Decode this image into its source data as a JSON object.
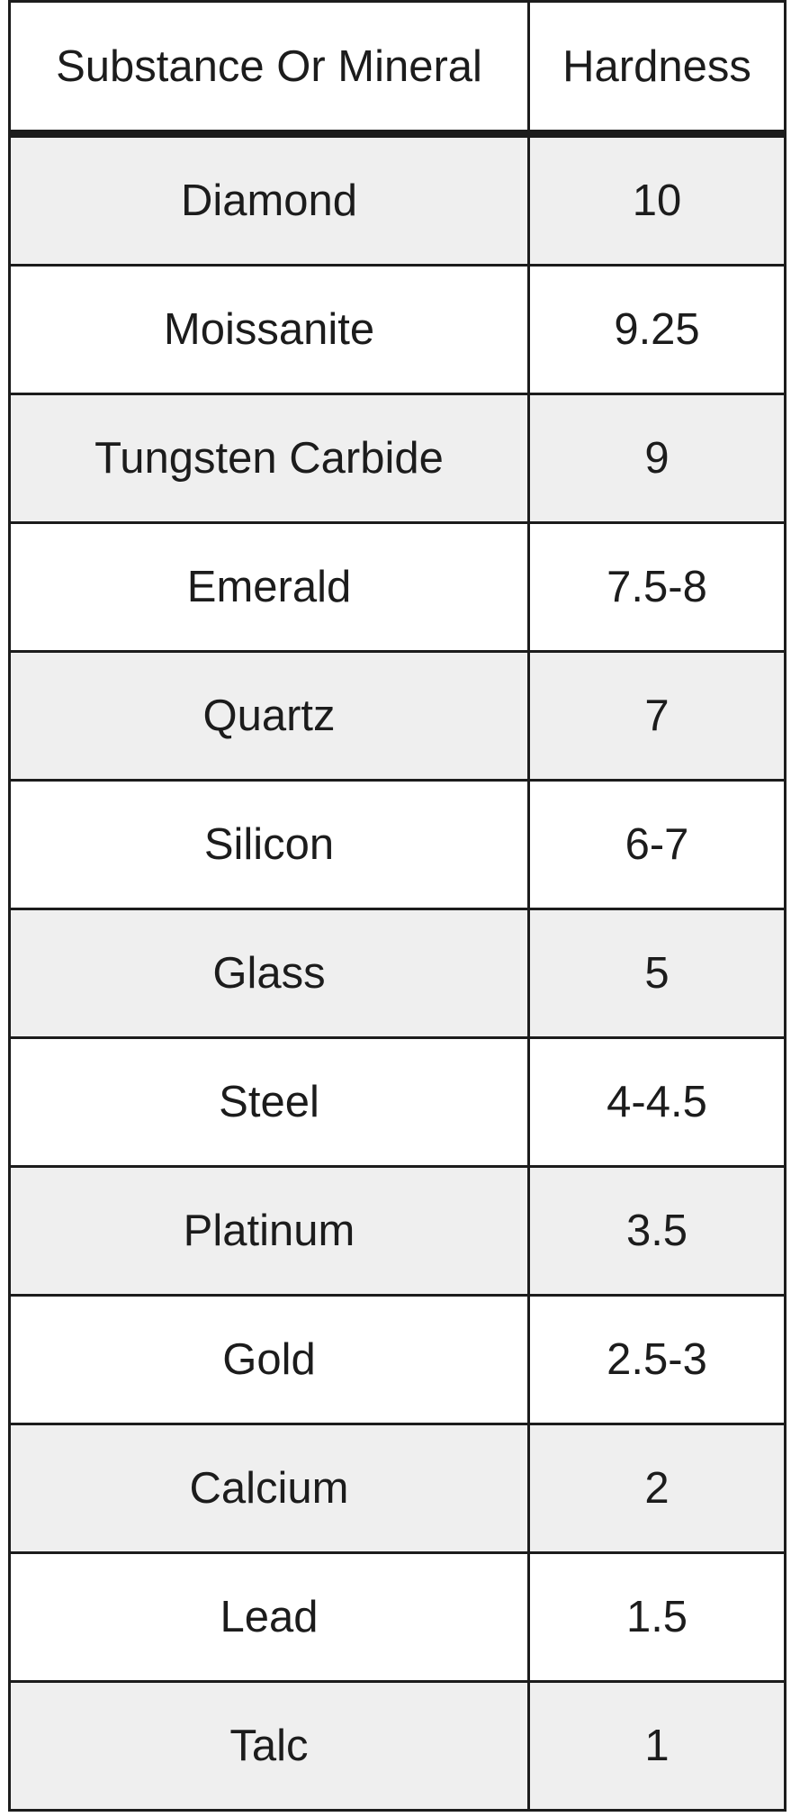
{
  "table": {
    "headers": [
      "Substance Or Mineral",
      "Hardness"
    ],
    "rows": [
      [
        "Diamond",
        "10"
      ],
      [
        "Moissanite",
        "9.25"
      ],
      [
        "Tungsten Carbide",
        "9"
      ],
      [
        "Emerald",
        "7.5-8"
      ],
      [
        "Quartz",
        "7"
      ],
      [
        "Silicon",
        "6-7"
      ],
      [
        "Glass",
        "5"
      ],
      [
        "Steel",
        "4-4.5"
      ],
      [
        "Platinum",
        "3.5"
      ],
      [
        "Gold",
        "2.5-3"
      ],
      [
        "Calcium",
        "2"
      ],
      [
        "Lead",
        "1.5"
      ],
      [
        "Talc",
        "1"
      ]
    ]
  },
  "colors": {
    "stripe": "#efefef",
    "border": "#1c1c1c"
  }
}
